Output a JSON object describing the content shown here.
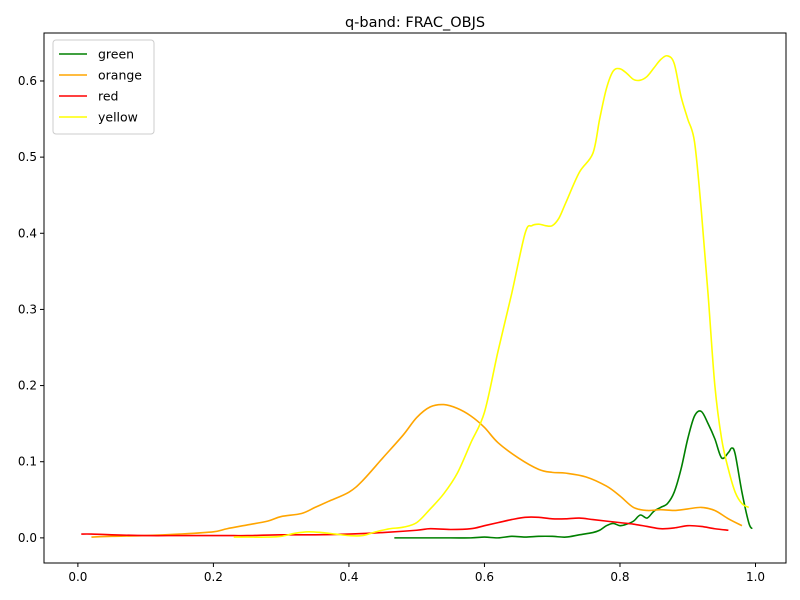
{
  "chart_data": {
    "type": "line",
    "title": "q-band: FRAC_OBJS",
    "xlabel": "",
    "ylabel": "",
    "xlim": [
      -0.05,
      1.045
    ],
    "ylim": [
      -0.033,
      0.663
    ],
    "x_ticks": [
      0.0,
      0.2,
      0.4,
      0.6,
      0.8,
      1.0
    ],
    "x_tick_labels": [
      "0.0",
      "0.2",
      "0.4",
      "0.6",
      "0.8",
      "1.0"
    ],
    "y_ticks": [
      0.0,
      0.1,
      0.2,
      0.3,
      0.4,
      0.5,
      0.6
    ],
    "y_tick_labels": [
      "0.0",
      "0.1",
      "0.2",
      "0.3",
      "0.4",
      "0.5",
      "0.6"
    ],
    "grid": false,
    "legend_position": "upper-left",
    "series": [
      {
        "name": "green",
        "color": "#008000",
        "x": [
          0.467,
          0.5,
          0.55,
          0.58,
          0.6,
          0.62,
          0.64,
          0.66,
          0.68,
          0.7,
          0.72,
          0.74,
          0.76,
          0.77,
          0.78,
          0.79,
          0.8,
          0.81,
          0.82,
          0.83,
          0.84,
          0.85,
          0.86,
          0.87,
          0.88,
          0.89,
          0.9,
          0.91,
          0.92,
          0.93,
          0.94,
          0.95,
          0.96,
          0.965,
          0.97,
          0.98,
          0.99,
          0.995
        ],
        "y": [
          0.0,
          0.0,
          0.0,
          0.0,
          0.001,
          0.0,
          0.002,
          0.001,
          0.002,
          0.002,
          0.001,
          0.004,
          0.007,
          0.01,
          0.016,
          0.019,
          0.016,
          0.018,
          0.022,
          0.03,
          0.026,
          0.035,
          0.04,
          0.045,
          0.06,
          0.09,
          0.13,
          0.16,
          0.166,
          0.15,
          0.13,
          0.105,
          0.112,
          0.118,
          0.11,
          0.06,
          0.02,
          0.012
        ]
      },
      {
        "name": "orange",
        "color": "#ffa500",
        "x": [
          0.02,
          0.05,
          0.1,
          0.15,
          0.2,
          0.22,
          0.25,
          0.28,
          0.3,
          0.33,
          0.35,
          0.37,
          0.4,
          0.42,
          0.45,
          0.48,
          0.5,
          0.52,
          0.54,
          0.56,
          0.58,
          0.6,
          0.62,
          0.65,
          0.68,
          0.7,
          0.72,
          0.75,
          0.78,
          0.8,
          0.82,
          0.84,
          0.86,
          0.88,
          0.9,
          0.92,
          0.94,
          0.96,
          0.98
        ],
        "y": [
          0.001,
          0.002,
          0.003,
          0.005,
          0.008,
          0.012,
          0.017,
          0.022,
          0.028,
          0.032,
          0.04,
          0.048,
          0.06,
          0.075,
          0.105,
          0.135,
          0.158,
          0.172,
          0.175,
          0.17,
          0.16,
          0.145,
          0.125,
          0.105,
          0.09,
          0.086,
          0.085,
          0.08,
          0.068,
          0.055,
          0.04,
          0.036,
          0.037,
          0.036,
          0.038,
          0.04,
          0.036,
          0.025,
          0.016
        ]
      },
      {
        "name": "red",
        "color": "#ff0000",
        "x": [
          0.005,
          0.02,
          0.05,
          0.1,
          0.15,
          0.2,
          0.23,
          0.25,
          0.3,
          0.35,
          0.4,
          0.45,
          0.5,
          0.52,
          0.55,
          0.58,
          0.6,
          0.62,
          0.64,
          0.66,
          0.68,
          0.7,
          0.72,
          0.74,
          0.76,
          0.78,
          0.8,
          0.82,
          0.84,
          0.86,
          0.88,
          0.9,
          0.92,
          0.94,
          0.96
        ],
        "y": [
          0.005,
          0.005,
          0.004,
          0.003,
          0.003,
          0.003,
          0.003,
          0.003,
          0.004,
          0.004,
          0.005,
          0.007,
          0.01,
          0.012,
          0.011,
          0.012,
          0.016,
          0.02,
          0.024,
          0.027,
          0.027,
          0.025,
          0.025,
          0.026,
          0.024,
          0.022,
          0.02,
          0.018,
          0.015,
          0.012,
          0.013,
          0.016,
          0.015,
          0.012,
          0.01
        ]
      },
      {
        "name": "yellow",
        "color": "#ffff00",
        "x": [
          0.23,
          0.25,
          0.28,
          0.3,
          0.32,
          0.34,
          0.36,
          0.38,
          0.4,
          0.42,
          0.44,
          0.46,
          0.48,
          0.5,
          0.52,
          0.54,
          0.56,
          0.58,
          0.6,
          0.62,
          0.64,
          0.66,
          0.67,
          0.68,
          0.69,
          0.7,
          0.71,
          0.72,
          0.74,
          0.76,
          0.77,
          0.78,
          0.79,
          0.8,
          0.81,
          0.82,
          0.83,
          0.84,
          0.85,
          0.86,
          0.87,
          0.88,
          0.89,
          0.9,
          0.91,
          0.92,
          0.93,
          0.94,
          0.95,
          0.96,
          0.97,
          0.98,
          0.99
        ],
        "y": [
          0.001,
          0.001,
          0.001,
          0.002,
          0.006,
          0.008,
          0.007,
          0.005,
          0.003,
          0.003,
          0.008,
          0.012,
          0.014,
          0.02,
          0.038,
          0.058,
          0.085,
          0.125,
          0.165,
          0.245,
          0.32,
          0.4,
          0.41,
          0.412,
          0.41,
          0.41,
          0.42,
          0.44,
          0.48,
          0.505,
          0.55,
          0.59,
          0.613,
          0.616,
          0.61,
          0.602,
          0.601,
          0.606,
          0.617,
          0.628,
          0.633,
          0.623,
          0.58,
          0.55,
          0.52,
          0.43,
          0.32,
          0.2,
          0.13,
          0.09,
          0.06,
          0.045,
          0.04
        ]
      }
    ]
  }
}
